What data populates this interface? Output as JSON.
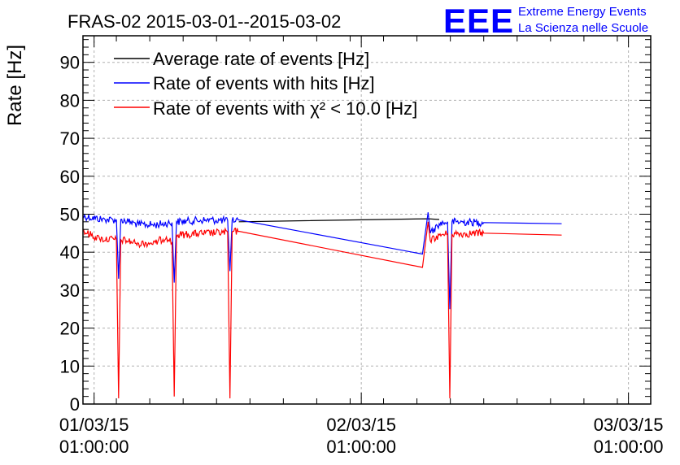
{
  "chart_data": {
    "type": "line",
    "title": "FRAS-02 2015-03-01--2015-03-02",
    "ylabel": "Rate [Hz]",
    "xlabel": "",
    "ylim": [
      0,
      97
    ],
    "yticks": [
      0,
      10,
      20,
      30,
      40,
      50,
      60,
      70,
      80,
      90
    ],
    "x_range": [
      "2015-03-01 00:00:00",
      "2015-03-03 03:00:00"
    ],
    "xticks": [
      {
        "date": "2015-03-01 01:00:00",
        "line1": "01/03/15",
        "line2": "01:00:00"
      },
      {
        "date": "2015-03-02 01:00:00",
        "line1": "02/03/15",
        "line2": "01:00:00"
      },
      {
        "date": "2015-03-03 01:00:00",
        "line1": "03/03/15",
        "line2": "01:00:00"
      }
    ],
    "grid": true,
    "legend_position": "top-left",
    "series": [
      {
        "name": "Average rate of events [Hz]",
        "color": "#000000",
        "points": [
          [
            "2015-03-01 14:00",
            48.0
          ],
          [
            "2015-03-02 07:00",
            48.8
          ],
          [
            "2015-03-02 08:00",
            48.6
          ]
        ]
      },
      {
        "name": "Rate of events with hits [Hz]",
        "color": "#0000ff",
        "points": [
          [
            "2015-03-01 00:00",
            49.5
          ],
          [
            "2015-03-01 02:00",
            48.5
          ],
          [
            "2015-03-01 03:00",
            48.6
          ],
          [
            "2015-03-01 03:12",
            33.0
          ],
          [
            "2015-03-01 03:24",
            48.6
          ],
          [
            "2015-03-01 05:00",
            47.3
          ],
          [
            "2015-03-01 06:30",
            47.2
          ],
          [
            "2015-03-01 08:00",
            47.8
          ],
          [
            "2015-03-01 08:12",
            32.0
          ],
          [
            "2015-03-01 08:24",
            48.0
          ],
          [
            "2015-03-01 11:00",
            48.5
          ],
          [
            "2015-03-01 13:00",
            48.3
          ],
          [
            "2015-03-01 13:12",
            35.0
          ],
          [
            "2015-03-01 13:24",
            48.4
          ],
          [
            "2015-03-01 14:00",
            48.5
          ],
          [
            "2015-03-02 06:30",
            39.5
          ],
          [
            "2015-03-02 07:00",
            50.5
          ],
          [
            "2015-03-02 07:12",
            45.0
          ],
          [
            "2015-03-02 08:00",
            47.5
          ],
          [
            "2015-03-02 08:45",
            48.0
          ],
          [
            "2015-03-02 08:57",
            25.0
          ],
          [
            "2015-03-02 09:09",
            48.0
          ],
          [
            "2015-03-02 12:00",
            47.8
          ],
          [
            "2015-03-02 19:00",
            47.5
          ]
        ]
      },
      {
        "name": "Rate of events with χ² < 10.0 [Hz]",
        "color": "#ff0000",
        "points": [
          [
            "2015-03-01 00:00",
            45.5
          ],
          [
            "2015-03-01 01:30",
            43.5
          ],
          [
            "2015-03-01 03:00",
            43.3
          ],
          [
            "2015-03-01 03:12",
            1.5
          ],
          [
            "2015-03-01 03:24",
            43.3
          ],
          [
            "2015-03-01 05:00",
            42.3
          ],
          [
            "2015-03-01 06:30",
            42.5
          ],
          [
            "2015-03-01 07:30",
            44.0
          ],
          [
            "2015-03-01 08:00",
            42.5
          ],
          [
            "2015-03-01 08:12",
            2.0
          ],
          [
            "2015-03-01 08:24",
            44.5
          ],
          [
            "2015-03-01 11:00",
            45.0
          ],
          [
            "2015-03-01 13:00",
            45.2
          ],
          [
            "2015-03-01 13:12",
            1.5
          ],
          [
            "2015-03-01 13:24",
            45.3
          ],
          [
            "2015-03-01 14:00",
            45.5
          ],
          [
            "2015-03-02 06:30",
            36.0
          ],
          [
            "2015-03-02 07:00",
            48.0
          ],
          [
            "2015-03-02 07:12",
            43.0
          ],
          [
            "2015-03-02 08:00",
            44.5
          ],
          [
            "2015-03-02 08:45",
            44.8
          ],
          [
            "2015-03-02 08:57",
            1.5
          ],
          [
            "2015-03-02 09:09",
            44.8
          ],
          [
            "2015-03-02 12:00",
            45.0
          ],
          [
            "2015-03-02 19:00",
            44.5
          ]
        ]
      }
    ],
    "noise_amplitude": 1.0
  },
  "logo": {
    "letters": "EEE",
    "line1": "Extreme Energy Events",
    "line2": "La Scienza nelle Scuole",
    "color": "#0000ff"
  }
}
